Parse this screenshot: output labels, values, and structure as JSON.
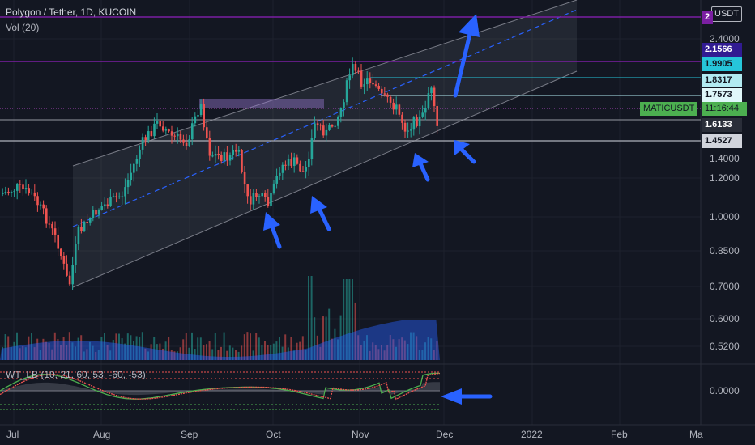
{
  "legend": {
    "symbol": "Polygon / Tether, 1D, KUCOIN",
    "volume": "Vol (20)",
    "indicator": "WT_LB (10, 21, 60, 53, -60, -53)"
  },
  "currency_button": "USDT",
  "axis": {
    "price_ticks": [
      {
        "label": "2.4000",
        "value": 2.4
      },
      {
        "label": "1.2000",
        "value": 1.2
      },
      {
        "label": "1.0000",
        "value": 1.0
      },
      {
        "label": "0.8500",
        "value": 0.85
      },
      {
        "label": "0.7000",
        "value": 0.7
      },
      {
        "label": "0.6000",
        "value": 0.6
      },
      {
        "label": "0.5200",
        "value": 0.52
      }
    ],
    "partial_tick": "1.4000",
    "osc_tick": "0.0000",
    "time_labels": [
      "Jul",
      "Aug",
      "Sep",
      "Oct",
      "Nov",
      "Dec",
      "2022",
      "Feb",
      "Ma"
    ]
  },
  "price_tags": [
    {
      "label": "2",
      "bg": "#7b1fa2",
      "fg": "#ffffff"
    },
    {
      "label": "2.1566",
      "bg": "#311b92",
      "fg": "#ffffff"
    },
    {
      "label": "1.9905",
      "bg": "#26c6da",
      "fg": "#131722"
    },
    {
      "label": "1.8317",
      "bg": "#b2ebf2",
      "fg": "#131722"
    },
    {
      "label": "1.7573",
      "bg": "#e0f7fa",
      "fg": "#131722"
    },
    {
      "label": "1.6133",
      "bg": "#2a2e39",
      "fg": "#ffffff"
    },
    {
      "label": "1.4527",
      "bg": "#d1d4dc",
      "fg": "#131722"
    }
  ],
  "ticker_tag": {
    "symbol": "MATICUSDT",
    "countdown": "11:16:44",
    "bg": "#4caf50"
  },
  "colors": {
    "up": "#26a69a",
    "down": "#ef5350",
    "arrow": "#2962ff",
    "purple_line": "#7b1fa2",
    "volume_ma": "#2962ff"
  }
}
